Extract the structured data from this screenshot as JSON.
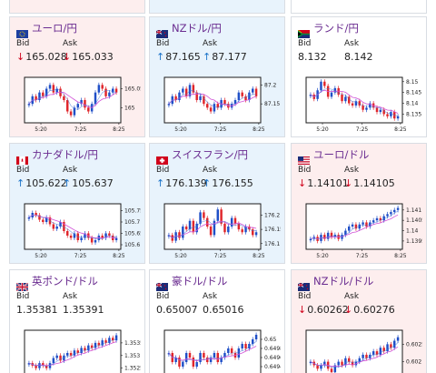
{
  "labels": {
    "bid": "Bid",
    "ask": "Ask"
  },
  "colors": {
    "up_candle": "#1f4fc7",
    "down_candle": "#e0262b",
    "ma_line": "#d152d8",
    "ma2_line": "#4472d8",
    "down_arrow": "#d0021b",
    "up_arrow": "#1a73c9"
  },
  "cards": [
    {
      "pair": "ユーロ/円",
      "flag": "eu-flag-icon",
      "dir": "down",
      "arrow": "↓",
      "bid": "165.028",
      "ask": "165.033",
      "chart_data": {
        "type": "candlestick",
        "x_ticks": [
          "5:20",
          "7:25",
          "8:25"
        ],
        "y_ticks": [
          "165.05",
          "165"
        ],
        "ylim": [
          164.96,
          165.08
        ],
        "close": [
          165.01,
          165.03,
          165.02,
          165.04,
          165.03,
          165.05,
          165.06,
          165.04,
          165.05,
          165.03,
          165.02,
          164.99,
          164.98,
          165.0,
          165.01,
          165.02,
          165.0,
          164.99,
          165.01,
          165.04,
          165.06,
          165.05,
          165.03,
          165.04,
          165.05,
          165.04
        ]
      }
    },
    {
      "pair": "NZドル/円",
      "flag": "nz-flag-icon",
      "dir": "up",
      "arrow": "↑",
      "bid": "87.165",
      "ask": "87.177",
      "chart_data": {
        "type": "candlestick",
        "x_ticks": [
          "5:20",
          "7:25",
          "8:25"
        ],
        "y_ticks": [
          "87.2",
          "87.15"
        ],
        "ylim": [
          87.1,
          87.22
        ],
        "close": [
          87.15,
          87.17,
          87.16,
          87.18,
          87.19,
          87.17,
          87.2,
          87.18,
          87.16,
          87.17,
          87.15,
          87.14,
          87.13,
          87.15,
          87.14,
          87.16,
          87.15,
          87.14,
          87.15,
          87.16,
          87.18,
          87.17,
          87.16,
          87.18,
          87.19,
          87.17
        ]
      }
    },
    {
      "pair": "ランド/円",
      "flag": "za-flag-icon",
      "dir": "flat",
      "arrow": "",
      "bid": "8.132",
      "ask": "8.142",
      "chart_data": {
        "type": "candlestick",
        "x_ticks": [
          "5:20",
          "7:25",
          "8:25"
        ],
        "y_ticks": [
          "8.15",
          "8.145",
          "8.14",
          "8.135"
        ],
        "ylim": [
          8.131,
          8.152
        ],
        "close": [
          8.144,
          8.142,
          8.146,
          8.15,
          8.148,
          8.143,
          8.145,
          8.147,
          8.144,
          8.141,
          8.143,
          8.14,
          8.139,
          8.141,
          8.139,
          8.137,
          8.138,
          8.14,
          8.138,
          8.136,
          8.137,
          8.135,
          8.134,
          8.136,
          8.133,
          8.134
        ]
      }
    },
    {
      "pair": "カナダドル/円",
      "flag": "ca-flag-icon",
      "dir": "up",
      "arrow": "↑",
      "bid": "105.622",
      "ask": "105.637",
      "chart_data": {
        "type": "candlestick",
        "x_ticks": [
          "5:20",
          "7:25",
          "8:25"
        ],
        "y_ticks": [
          "105.75",
          "105.7",
          "105.65",
          "105.6"
        ],
        "ylim": [
          105.58,
          105.78
        ],
        "close": [
          105.72,
          105.74,
          105.73,
          105.71,
          105.7,
          105.72,
          105.69,
          105.67,
          105.68,
          105.7,
          105.66,
          105.64,
          105.63,
          105.65,
          105.62,
          105.63,
          105.65,
          105.63,
          105.61,
          105.62,
          105.64,
          105.63,
          105.65,
          105.64,
          105.62,
          105.63
        ]
      }
    },
    {
      "pair": "スイスフラン/円",
      "flag": "ch-flag-icon",
      "dir": "up",
      "arrow": "↑",
      "bid": "176.139",
      "ask": "176.155",
      "chart_data": {
        "type": "candlestick",
        "x_ticks": [
          "5:20",
          "7:25",
          "8:25"
        ],
        "y_ticks": [
          "176.2",
          "176.15",
          "176.1"
        ],
        "ylim": [
          176.08,
          176.24
        ],
        "close": [
          176.13,
          176.11,
          176.14,
          176.12,
          176.16,
          176.15,
          176.18,
          176.14,
          176.17,
          176.21,
          176.19,
          176.16,
          176.13,
          176.18,
          176.22,
          176.17,
          176.14,
          176.16,
          176.19,
          176.17,
          176.15,
          176.14,
          176.16,
          176.15,
          176.13,
          176.14
        ]
      }
    },
    {
      "pair": "ユーロ/ドル",
      "flag": "us-flag-icon",
      "dir": "down",
      "arrow": "↓",
      "bid": "1.14101",
      "ask": "1.14105",
      "chart_data": {
        "type": "candlestick",
        "x_ticks": [
          "5:20",
          "7:25",
          "8:25"
        ],
        "y_ticks": [
          "1.141",
          "1.1405",
          "1.14",
          "1.1395"
        ],
        "ylim": [
          1.1391,
          1.1413
        ],
        "close": [
          1.1396,
          1.1397,
          1.1395,
          1.1398,
          1.1396,
          1.1399,
          1.1397,
          1.1398,
          1.1396,
          1.1398,
          1.14,
          1.1402,
          1.1403,
          1.1401,
          1.1403,
          1.1404,
          1.1402,
          1.1404,
          1.1405,
          1.1406,
          1.1405,
          1.1407,
          1.1408,
          1.1409,
          1.141,
          1.1411
        ]
      }
    },
    {
      "pair": "英ポンド/ドル",
      "flag": "gb-flag-icon",
      "dir": "flat",
      "arrow": "",
      "bid": "1.35381",
      "ask": "1.35391",
      "chart_data": {
        "type": "candlestick",
        "x_ticks": [],
        "y_ticks": [
          "1.3535",
          "1.353",
          "1.3525"
        ],
        "ylim": [
          1.3522,
          1.354
        ],
        "close": [
          1.3527,
          1.3526,
          1.3525,
          1.3527,
          1.3526,
          1.3525,
          1.3527,
          1.3529,
          1.353,
          1.3528,
          1.353,
          1.3531,
          1.353,
          1.3532,
          1.3531,
          1.3533,
          1.3532,
          1.3534,
          1.3533,
          1.3535,
          1.3534,
          1.3536,
          1.3535,
          1.3537,
          1.3536,
          1.3538
        ]
      }
    },
    {
      "pair": "豪ドル/ドル",
      "flag": "au-flag-icon",
      "dir": "flat",
      "arrow": "",
      "bid": "0.65007",
      "ask": "0.65016",
      "chart_data": {
        "type": "candlestick",
        "x_ticks": [],
        "y_ticks": [
          "0.65",
          "0.6498",
          "0.6496",
          "0.6494"
        ],
        "ylim": [
          0.6492,
          0.6502
        ],
        "close": [
          0.6497,
          0.6495,
          0.6496,
          0.6494,
          0.6495,
          0.6497,
          0.6496,
          0.6494,
          0.6495,
          0.6497,
          0.6496,
          0.6495,
          0.6496,
          0.6497,
          0.6495,
          0.6496,
          0.6497,
          0.6498,
          0.6497,
          0.6496,
          0.6498,
          0.6499,
          0.6498,
          0.6499,
          0.65,
          0.6501
        ]
      }
    },
    {
      "pair": "NZドル/ドル",
      "flag": "nz-flag-icon",
      "dir": "down",
      "arrow": "↓",
      "bid": "0.60262",
      "ask": "0.60276",
      "chart_data": {
        "type": "candlestick",
        "x_ticks": [],
        "y_ticks": [
          "0.6025",
          "0.602"
        ],
        "ylim": [
          0.6016,
          0.6029
        ],
        "close": [
          0.602,
          0.6019,
          0.6018,
          0.6019,
          0.602,
          0.6018,
          0.6017,
          0.6019,
          0.602,
          0.6019,
          0.6021,
          0.602,
          0.6019,
          0.602,
          0.6021,
          0.6022,
          0.6021,
          0.6022,
          0.6023,
          0.6022,
          0.6024,
          0.6023,
          0.6025,
          0.6024,
          0.6026,
          0.6027
        ]
      }
    }
  ]
}
